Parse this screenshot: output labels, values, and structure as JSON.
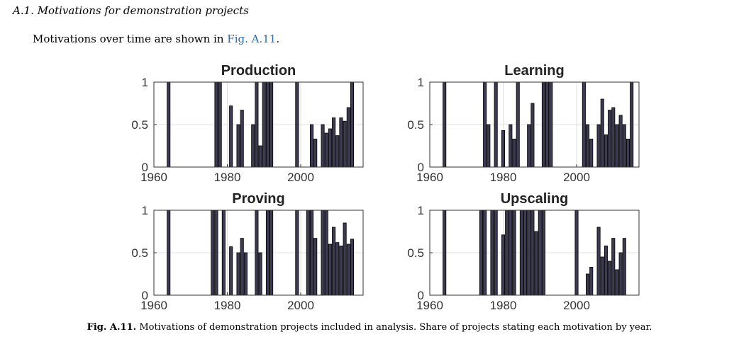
{
  "section": {
    "number": "A.1.",
    "title": "Motivations for demonstration projects"
  },
  "intro": {
    "text_before": "Motivations over time are shown in ",
    "link": "Fig. A.11",
    "text_after": "."
  },
  "caption": {
    "label": "Fig. A.11.",
    "text": "Motivations of demonstration projects included in analysis. Share of projects stating each motivation by year."
  },
  "colors": {
    "bar_fill": "#3d3b52",
    "bar_edge": "#000000",
    "grid": "#e0e0e0",
    "axis": "#333333"
  },
  "chart_data": [
    {
      "type": "bar",
      "title": "Production",
      "xlabel": "",
      "ylabel": "",
      "xlim": [
        1960,
        2017
      ],
      "ylim": [
        0,
        1
      ],
      "xticks": [
        1960,
        1980,
        2000
      ],
      "yticks": [
        0,
        0.5,
        1
      ],
      "ytick_labels": [
        "0",
        "0.5",
        "1"
      ],
      "x": [
        1964,
        1977,
        1978,
        1981,
        1983,
        1984,
        1987,
        1988,
        1989,
        1990,
        1991,
        1992,
        1999,
        2003,
        2004,
        2006,
        2007,
        2008,
        2009,
        2010,
        2011,
        2012,
        2013,
        2014
      ],
      "values": [
        1,
        1,
        1,
        0.72,
        0.5,
        0.67,
        0.5,
        1,
        0.25,
        1,
        1,
        1,
        1,
        0.5,
        0.33,
        0.5,
        0.4,
        0.45,
        0.58,
        0.37,
        0.58,
        0.54,
        0.7,
        1
      ]
    },
    {
      "type": "bar",
      "title": "Learning",
      "xlabel": "",
      "ylabel": "",
      "xlim": [
        1960,
        2017
      ],
      "ylim": [
        0,
        1
      ],
      "xticks": [
        1960,
        1980,
        2000
      ],
      "yticks": [
        0,
        0.5,
        1
      ],
      "ytick_labels": [
        "0",
        "0.5",
        "1"
      ],
      "x": [
        1964,
        1975,
        1976,
        1978,
        1980,
        1982,
        1983,
        1984,
        1987,
        1988,
        1991,
        1992,
        1993,
        2002,
        2003,
        2004,
        2006,
        2007,
        2008,
        2009,
        2010,
        2011,
        2012,
        2013,
        2014,
        2015
      ],
      "values": [
        1,
        1,
        0.5,
        1,
        0.43,
        0.5,
        0.33,
        1,
        0.5,
        0.75,
        1,
        1,
        1,
        1,
        0.5,
        0.33,
        0.5,
        0.8,
        0.38,
        0.67,
        0.7,
        0.5,
        0.61,
        0.5,
        0.33,
        1
      ]
    },
    {
      "type": "bar",
      "title": "Proving",
      "xlabel": "",
      "ylabel": "",
      "xlim": [
        1960,
        2017
      ],
      "ylim": [
        0,
        1
      ],
      "xticks": [
        1960,
        1980,
        2000
      ],
      "yticks": [
        0,
        0.5,
        1
      ],
      "ytick_labels": [
        "0",
        "0.5",
        "1"
      ],
      "x": [
        1964,
        1976,
        1977,
        1979,
        1981,
        1983,
        1984,
        1985,
        1988,
        1989,
        1991,
        1992,
        1999,
        2002,
        2003,
        2004,
        2006,
        2007,
        2008,
        2009,
        2010,
        2011,
        2012,
        2013,
        2014
      ],
      "values": [
        1,
        1,
        1,
        1,
        0.57,
        0.5,
        0.67,
        0.5,
        1,
        0.5,
        1,
        1,
        1,
        1,
        1,
        0.67,
        1,
        1,
        0.6,
        0.8,
        0.62,
        0.58,
        0.85,
        0.6,
        0.66
      ]
    },
    {
      "type": "bar",
      "title": "Upscaling",
      "xlabel": "",
      "ylabel": "",
      "xlim": [
        1960,
        2017
      ],
      "ylim": [
        0,
        1
      ],
      "xticks": [
        1960,
        1980,
        2000
      ],
      "yticks": [
        0,
        0.5,
        1
      ],
      "ytick_labels": [
        "0",
        "0.5",
        "1"
      ],
      "x": [
        1964,
        1974,
        1975,
        1977,
        1978,
        1980,
        1981,
        1982,
        1983,
        1985,
        1986,
        1987,
        1988,
        1989,
        1990,
        1991,
        2000,
        2003,
        2004,
        2006,
        2007,
        2008,
        2009,
        2010,
        2011,
        2012,
        2013
      ],
      "values": [
        1,
        1,
        1,
        1,
        1,
        0.71,
        1,
        1,
        1,
        1,
        1,
        1,
        1,
        0.75,
        1,
        1,
        1,
        0.25,
        0.33,
        0.8,
        0.45,
        0.58,
        0.4,
        0.67,
        0.3,
        0.5,
        0.67
      ]
    }
  ]
}
